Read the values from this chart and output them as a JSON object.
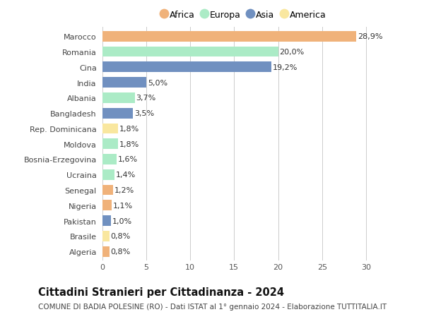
{
  "countries": [
    "Algeria",
    "Brasile",
    "Pakistan",
    "Nigeria",
    "Senegal",
    "Ucraina",
    "Bosnia-Erzegovina",
    "Moldova",
    "Rep. Dominicana",
    "Bangladesh",
    "Albania",
    "India",
    "Cina",
    "Romania",
    "Marocco"
  ],
  "values": [
    0.8,
    0.8,
    1.0,
    1.1,
    1.2,
    1.4,
    1.6,
    1.8,
    1.8,
    3.5,
    3.7,
    5.0,
    19.2,
    20.0,
    28.9
  ],
  "labels": [
    "0,8%",
    "0,8%",
    "1,0%",
    "1,1%",
    "1,2%",
    "1,4%",
    "1,6%",
    "1,8%",
    "1,8%",
    "3,5%",
    "3,7%",
    "5,0%",
    "19,2%",
    "20,0%",
    "28,9%"
  ],
  "continents": [
    "Africa",
    "America",
    "Asia",
    "Africa",
    "Africa",
    "Europa",
    "Europa",
    "Europa",
    "America",
    "Asia",
    "Europa",
    "Asia",
    "Asia",
    "Europa",
    "Africa"
  ],
  "continent_colors": {
    "Africa": "#F0B27A",
    "Europa": "#ABEBC6",
    "Asia": "#7090C0",
    "America": "#F9E79F"
  },
  "legend_order": [
    "Africa",
    "Europa",
    "Asia",
    "America"
  ],
  "legend_colors": {
    "Africa": "#F0B27A",
    "Europa": "#ABEBC6",
    "Asia": "#7090C0",
    "America": "#F9E79F"
  },
  "title": "Cittadini Stranieri per Cittadinanza - 2024",
  "subtitle": "COMUNE DI BADIA POLESINE (RO) - Dati ISTAT al 1° gennaio 2024 - Elaborazione TUTTITALIA.IT",
  "xlabel_ticks": [
    0,
    5,
    10,
    15,
    20,
    25,
    30
  ],
  "xlim": [
    -0.3,
    32.5
  ],
  "background_color": "#ffffff",
  "grid_color": "#cccccc",
  "bar_height": 0.68,
  "label_fontsize": 8,
  "tick_fontsize": 8,
  "title_fontsize": 10.5,
  "subtitle_fontsize": 7.5
}
